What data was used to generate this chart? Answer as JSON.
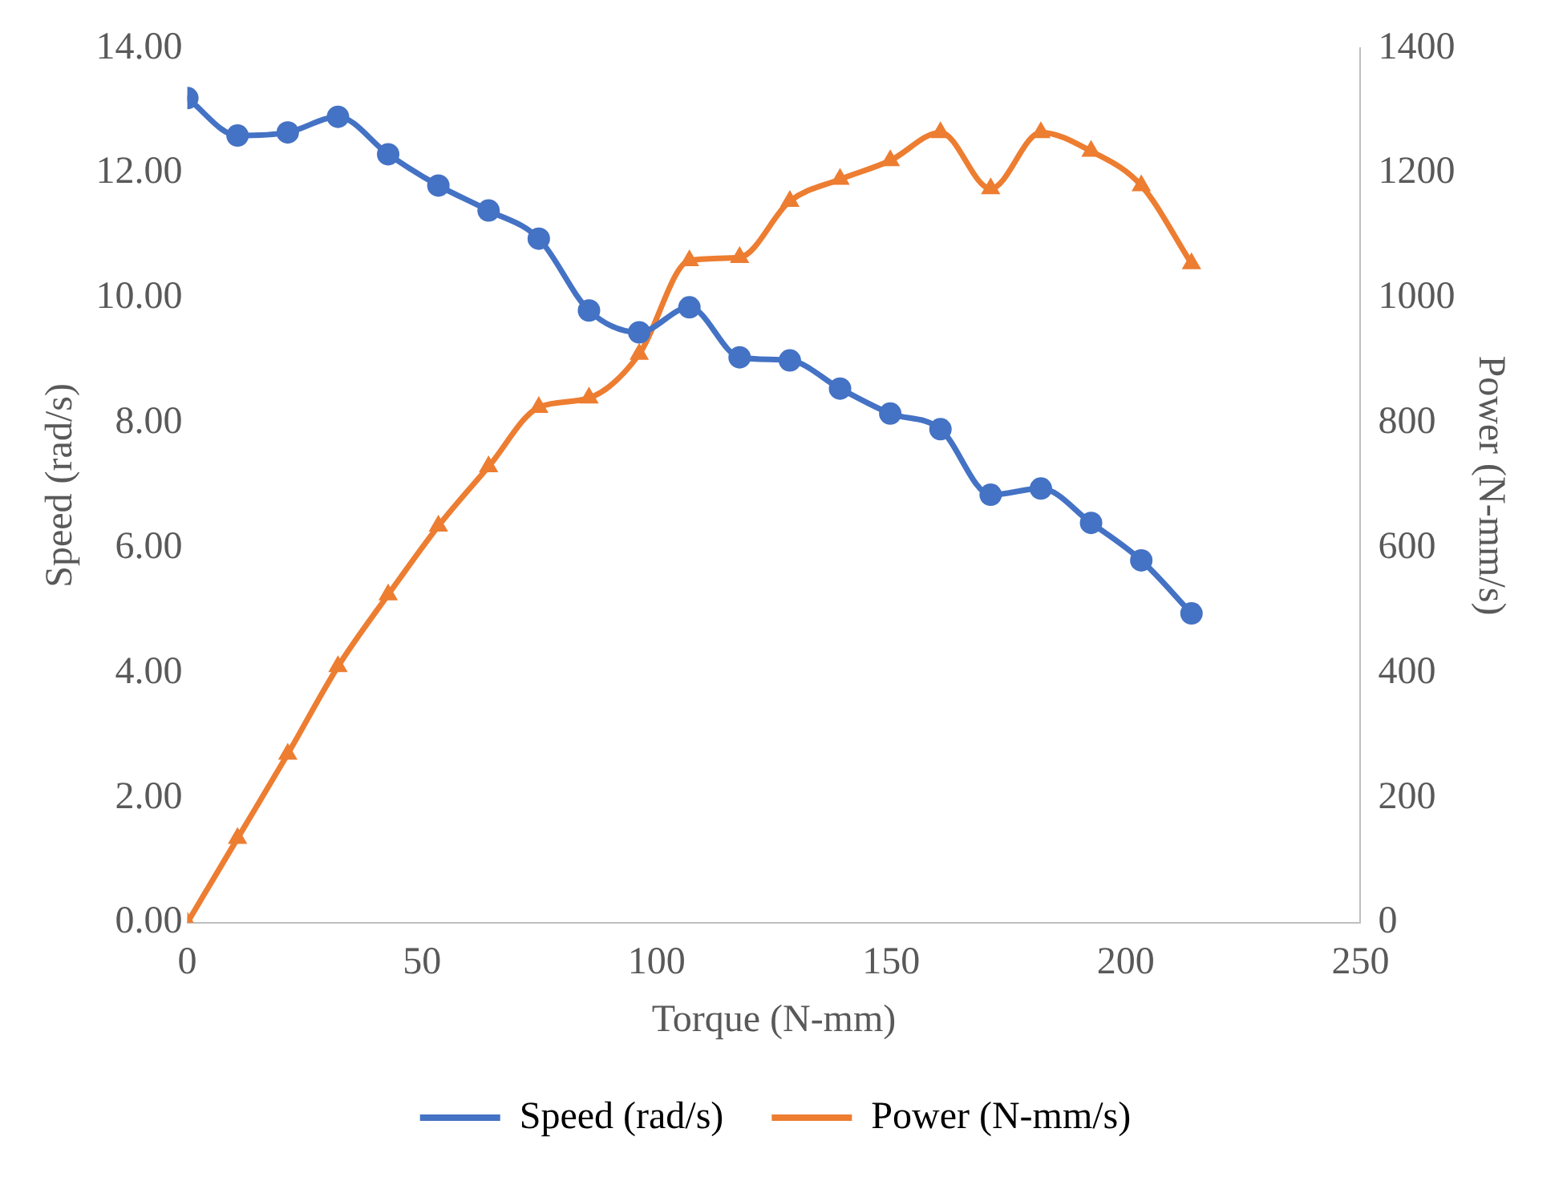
{
  "chart_data": {
    "type": "line",
    "xlabel": "Torque (N-mm)",
    "ylabel": "Speed (rad/s)",
    "y2label": "Power (N-mm/s)",
    "x": [
      0,
      10.7,
      21.4,
      32.1,
      42.8,
      53.5,
      64.2,
      74.9,
      85.6,
      96.3,
      107,
      117.7,
      128.4,
      139.1,
      149.8,
      160.5,
      171.2,
      181.9,
      192.6,
      203.3,
      214
    ],
    "series": [
      {
        "name": "Speed (rad/s)",
        "color": "#4472c4",
        "marker": "circle",
        "values": [
          13.2,
          12.6,
          12.65,
          12.9,
          12.3,
          11.8,
          11.4,
          10.95,
          9.8,
          9.45,
          9.85,
          9.05,
          9.0,
          8.55,
          8.15,
          7.9,
          6.85,
          6.95,
          6.4,
          5.8,
          4.95
        ]
      },
      {
        "name": "Power (N-mm/s)",
        "color": "#ed7d31",
        "marker": "triangle",
        "axis": "y2",
        "values": [
          0,
          135,
          270,
          410,
          525,
          635,
          730,
          825,
          840,
          910,
          1060,
          1065,
          1155,
          1190,
          1220,
          1265,
          1175,
          1265,
          1235,
          1180,
          1055
        ]
      }
    ],
    "xlim": [
      0,
      250
    ],
    "xticks": [
      0,
      50,
      100,
      150,
      200,
      250
    ],
    "ylim": [
      0,
      14
    ],
    "yticks": [
      {
        "value": 0,
        "label": "0.00"
      },
      {
        "value": 2,
        "label": "2.00"
      },
      {
        "value": 4,
        "label": "4.00"
      },
      {
        "value": 6,
        "label": "6.00"
      },
      {
        "value": 8,
        "label": "8.00"
      },
      {
        "value": 10,
        "label": "10.00"
      },
      {
        "value": 12,
        "label": "12.00"
      },
      {
        "value": 14,
        "label": "14.00"
      }
    ],
    "y2lim": [
      0,
      1400
    ],
    "y2ticks": [
      0,
      200,
      400,
      600,
      800,
      1000,
      1200,
      1400
    ],
    "grid": false,
    "legend": "bottom",
    "line_style": "solid"
  }
}
